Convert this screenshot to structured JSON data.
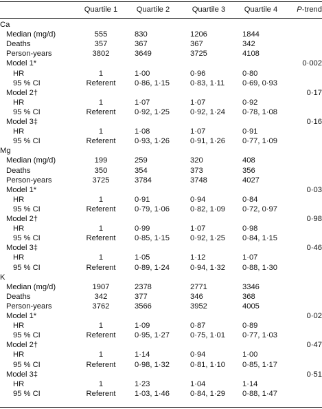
{
  "header": {
    "cols": [
      "Quartile 1",
      "Quartile 2",
      "Quartile 3",
      "Quartile 4"
    ],
    "ptrend_italic": "P",
    "ptrend_rest": "-trend"
  },
  "rows": [
    {
      "kind": "section",
      "label": "Ca"
    },
    {
      "kind": "data",
      "indent": 1,
      "label": "Median (mg/d)",
      "v": [
        "555",
        "830",
        "1206",
        "1844"
      ],
      "p": ""
    },
    {
      "kind": "data",
      "indent": 1,
      "label": "Deaths",
      "v": [
        "357",
        "367",
        "367",
        "342"
      ],
      "p": ""
    },
    {
      "kind": "data",
      "indent": 1,
      "label": "Person-years",
      "v": [
        "3802",
        "3649",
        "3725",
        "4108"
      ],
      "p": ""
    },
    {
      "kind": "data",
      "indent": 1,
      "label": "Model 1*",
      "v": [
        "",
        "",
        "",
        ""
      ],
      "p": "0·002"
    },
    {
      "kind": "data",
      "indent": 2,
      "label": "HR",
      "v": [
        "1",
        "1·00",
        "0·96",
        "0·80"
      ],
      "p": ""
    },
    {
      "kind": "data",
      "indent": 2,
      "label": "95 % CI",
      "v": [
        "Referent",
        "0·86, 1·15",
        "0·83, 1·11",
        "0·69, 0·93"
      ],
      "p": ""
    },
    {
      "kind": "data",
      "indent": 1,
      "label": "Model 2†",
      "v": [
        "",
        "",
        "",
        ""
      ],
      "p": "0·17"
    },
    {
      "kind": "data",
      "indent": 2,
      "label": "HR",
      "v": [
        "1",
        "1·07",
        "1·07",
        "0·92"
      ],
      "p": ""
    },
    {
      "kind": "data",
      "indent": 2,
      "label": "95 % CI",
      "v": [
        "Referent",
        "0·92, 1·25",
        "0·92, 1·24",
        "0·78, 1·08"
      ],
      "p": ""
    },
    {
      "kind": "data",
      "indent": 1,
      "label": "Model 3‡",
      "v": [
        "",
        "",
        "",
        ""
      ],
      "p": "0·16"
    },
    {
      "kind": "data",
      "indent": 2,
      "label": "HR",
      "v": [
        "1",
        "1·08",
        "1·07",
        "0·91"
      ],
      "p": ""
    },
    {
      "kind": "data",
      "indent": 2,
      "label": "95 % CI",
      "v": [
        "Referent",
        "0·93, 1·26",
        "0·91, 1·26",
        "0·77, 1·09"
      ],
      "p": ""
    },
    {
      "kind": "section",
      "label": "Mg"
    },
    {
      "kind": "data",
      "indent": 1,
      "label": "Median (mg/d)",
      "v": [
        "199",
        "259",
        "320",
        "408"
      ],
      "p": ""
    },
    {
      "kind": "data",
      "indent": 1,
      "label": "Deaths",
      "v": [
        "350",
        "354",
        "373",
        "356"
      ],
      "p": ""
    },
    {
      "kind": "data",
      "indent": 1,
      "label": "Person-years",
      "v": [
        "3725",
        "3784",
        "3748",
        "4027"
      ],
      "p": ""
    },
    {
      "kind": "data",
      "indent": 1,
      "label": "Model 1*",
      "v": [
        "",
        "",
        "",
        ""
      ],
      "p": "0·03"
    },
    {
      "kind": "data",
      "indent": 2,
      "label": "HR",
      "v": [
        "1",
        "0·91",
        "0·94",
        "0·84"
      ],
      "p": ""
    },
    {
      "kind": "data",
      "indent": 2,
      "label": "95 % CI",
      "v": [
        "Referent",
        "0·79, 1·06",
        "0·82, 1·09",
        "0·72, 0·97"
      ],
      "p": ""
    },
    {
      "kind": "data",
      "indent": 1,
      "label": "Model 2†",
      "v": [
        "",
        "",
        "",
        ""
      ],
      "p": "0·98"
    },
    {
      "kind": "data",
      "indent": 2,
      "label": "HR",
      "v": [
        "1",
        "0·99",
        "1·07",
        "0·98"
      ],
      "p": ""
    },
    {
      "kind": "data",
      "indent": 2,
      "label": "95 % CI",
      "v": [
        "Referent",
        "0·85, 1·15",
        "0·92, 1·25",
        "0·84, 1·15"
      ],
      "p": ""
    },
    {
      "kind": "data",
      "indent": 1,
      "label": "Model 3‡",
      "v": [
        "",
        "",
        "",
        ""
      ],
      "p": "0·46"
    },
    {
      "kind": "data",
      "indent": 2,
      "label": "HR",
      "v": [
        "1",
        "1·05",
        "1·12",
        "1·07"
      ],
      "p": ""
    },
    {
      "kind": "data",
      "indent": 2,
      "label": "95 % CI",
      "v": [
        "Referent",
        "0·89, 1·24",
        "0·94, 1·32",
        "0·88, 1·30"
      ],
      "p": ""
    },
    {
      "kind": "section",
      "label": "K"
    },
    {
      "kind": "data",
      "indent": 1,
      "label": "Median (mg/d)",
      "v": [
        "1907",
        "2378",
        "2771",
        "3346"
      ],
      "p": ""
    },
    {
      "kind": "data",
      "indent": 1,
      "label": "Deaths",
      "v": [
        "342",
        "377",
        "346",
        "368"
      ],
      "p": ""
    },
    {
      "kind": "data",
      "indent": 1,
      "label": "Person-years",
      "v": [
        "3762",
        "3566",
        "3952",
        "4005"
      ],
      "p": ""
    },
    {
      "kind": "data",
      "indent": 1,
      "label": "Model 1*",
      "v": [
        "",
        "",
        "",
        ""
      ],
      "p": "0·02"
    },
    {
      "kind": "data",
      "indent": 2,
      "label": "HR",
      "v": [
        "1",
        "1·09",
        "0·87",
        "0·89"
      ],
      "p": ""
    },
    {
      "kind": "data",
      "indent": 2,
      "label": "95 % CI",
      "v": [
        "Referent",
        "0·95, 1·27",
        "0·75, 1·01",
        "0·77, 1·03"
      ],
      "p": ""
    },
    {
      "kind": "data",
      "indent": 1,
      "label": "Model 2†",
      "v": [
        "",
        "",
        "",
        ""
      ],
      "p": "0·47"
    },
    {
      "kind": "data",
      "indent": 2,
      "label": "HR",
      "v": [
        "1",
        "1·14",
        "0·94",
        "1·00"
      ],
      "p": ""
    },
    {
      "kind": "data",
      "indent": 2,
      "label": "95 % CI",
      "v": [
        "Referent",
        "0·98, 1·32",
        "0·81, 1·10",
        "0·85, 1·17"
      ],
      "p": ""
    },
    {
      "kind": "data",
      "indent": 1,
      "label": "Model 3‡",
      "v": [
        "",
        "",
        "",
        ""
      ],
      "p": "0·51"
    },
    {
      "kind": "data",
      "indent": 2,
      "label": "HR",
      "v": [
        "1",
        "1·23",
        "1·04",
        "1·14"
      ],
      "p": ""
    },
    {
      "kind": "data",
      "indent": 2,
      "label": "95 % CI",
      "v": [
        "Referent",
        "1·03, 1·46",
        "0·84, 1·29",
        "0·88, 1·47"
      ],
      "p": ""
    }
  ]
}
